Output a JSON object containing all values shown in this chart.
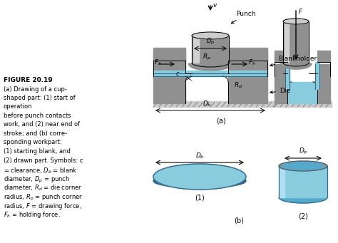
{
  "title": "",
  "figure_label": "FIGURE 20.19",
  "caption_lines": [
    "(a) Drawing of a cup-",
    "shaped part: (1) start of",
    "operation",
    "before punch contacts",
    "work, and (2) near end of",
    "stroke; and (b) corre-",
    "sponding workpart:",
    "(1) starting blank, and",
    "(2) drawn part. Symbols: c",
    "= clearance, $D_b$ = blank",
    "diameter, $D_p$ = punch",
    "diameter, $R_d$ = die corner",
    "radius, $R_p$ = punch corner",
    "radius, $F$ = drawing force,",
    "$F_h$ = holding force."
  ],
  "bg_color": "#ffffff",
  "gray_light": "#b0b0b0",
  "gray_dark": "#707070",
  "gray_med": "#909090",
  "cyan_light": "#aaddee",
  "cyan_dark": "#55aacc",
  "cyan_fill": "#88ccdd",
  "ground_hatch": "///",
  "label_fontsize": 6.5,
  "caption_fontsize": 6.0,
  "sub_label_fontsize": 7.5
}
